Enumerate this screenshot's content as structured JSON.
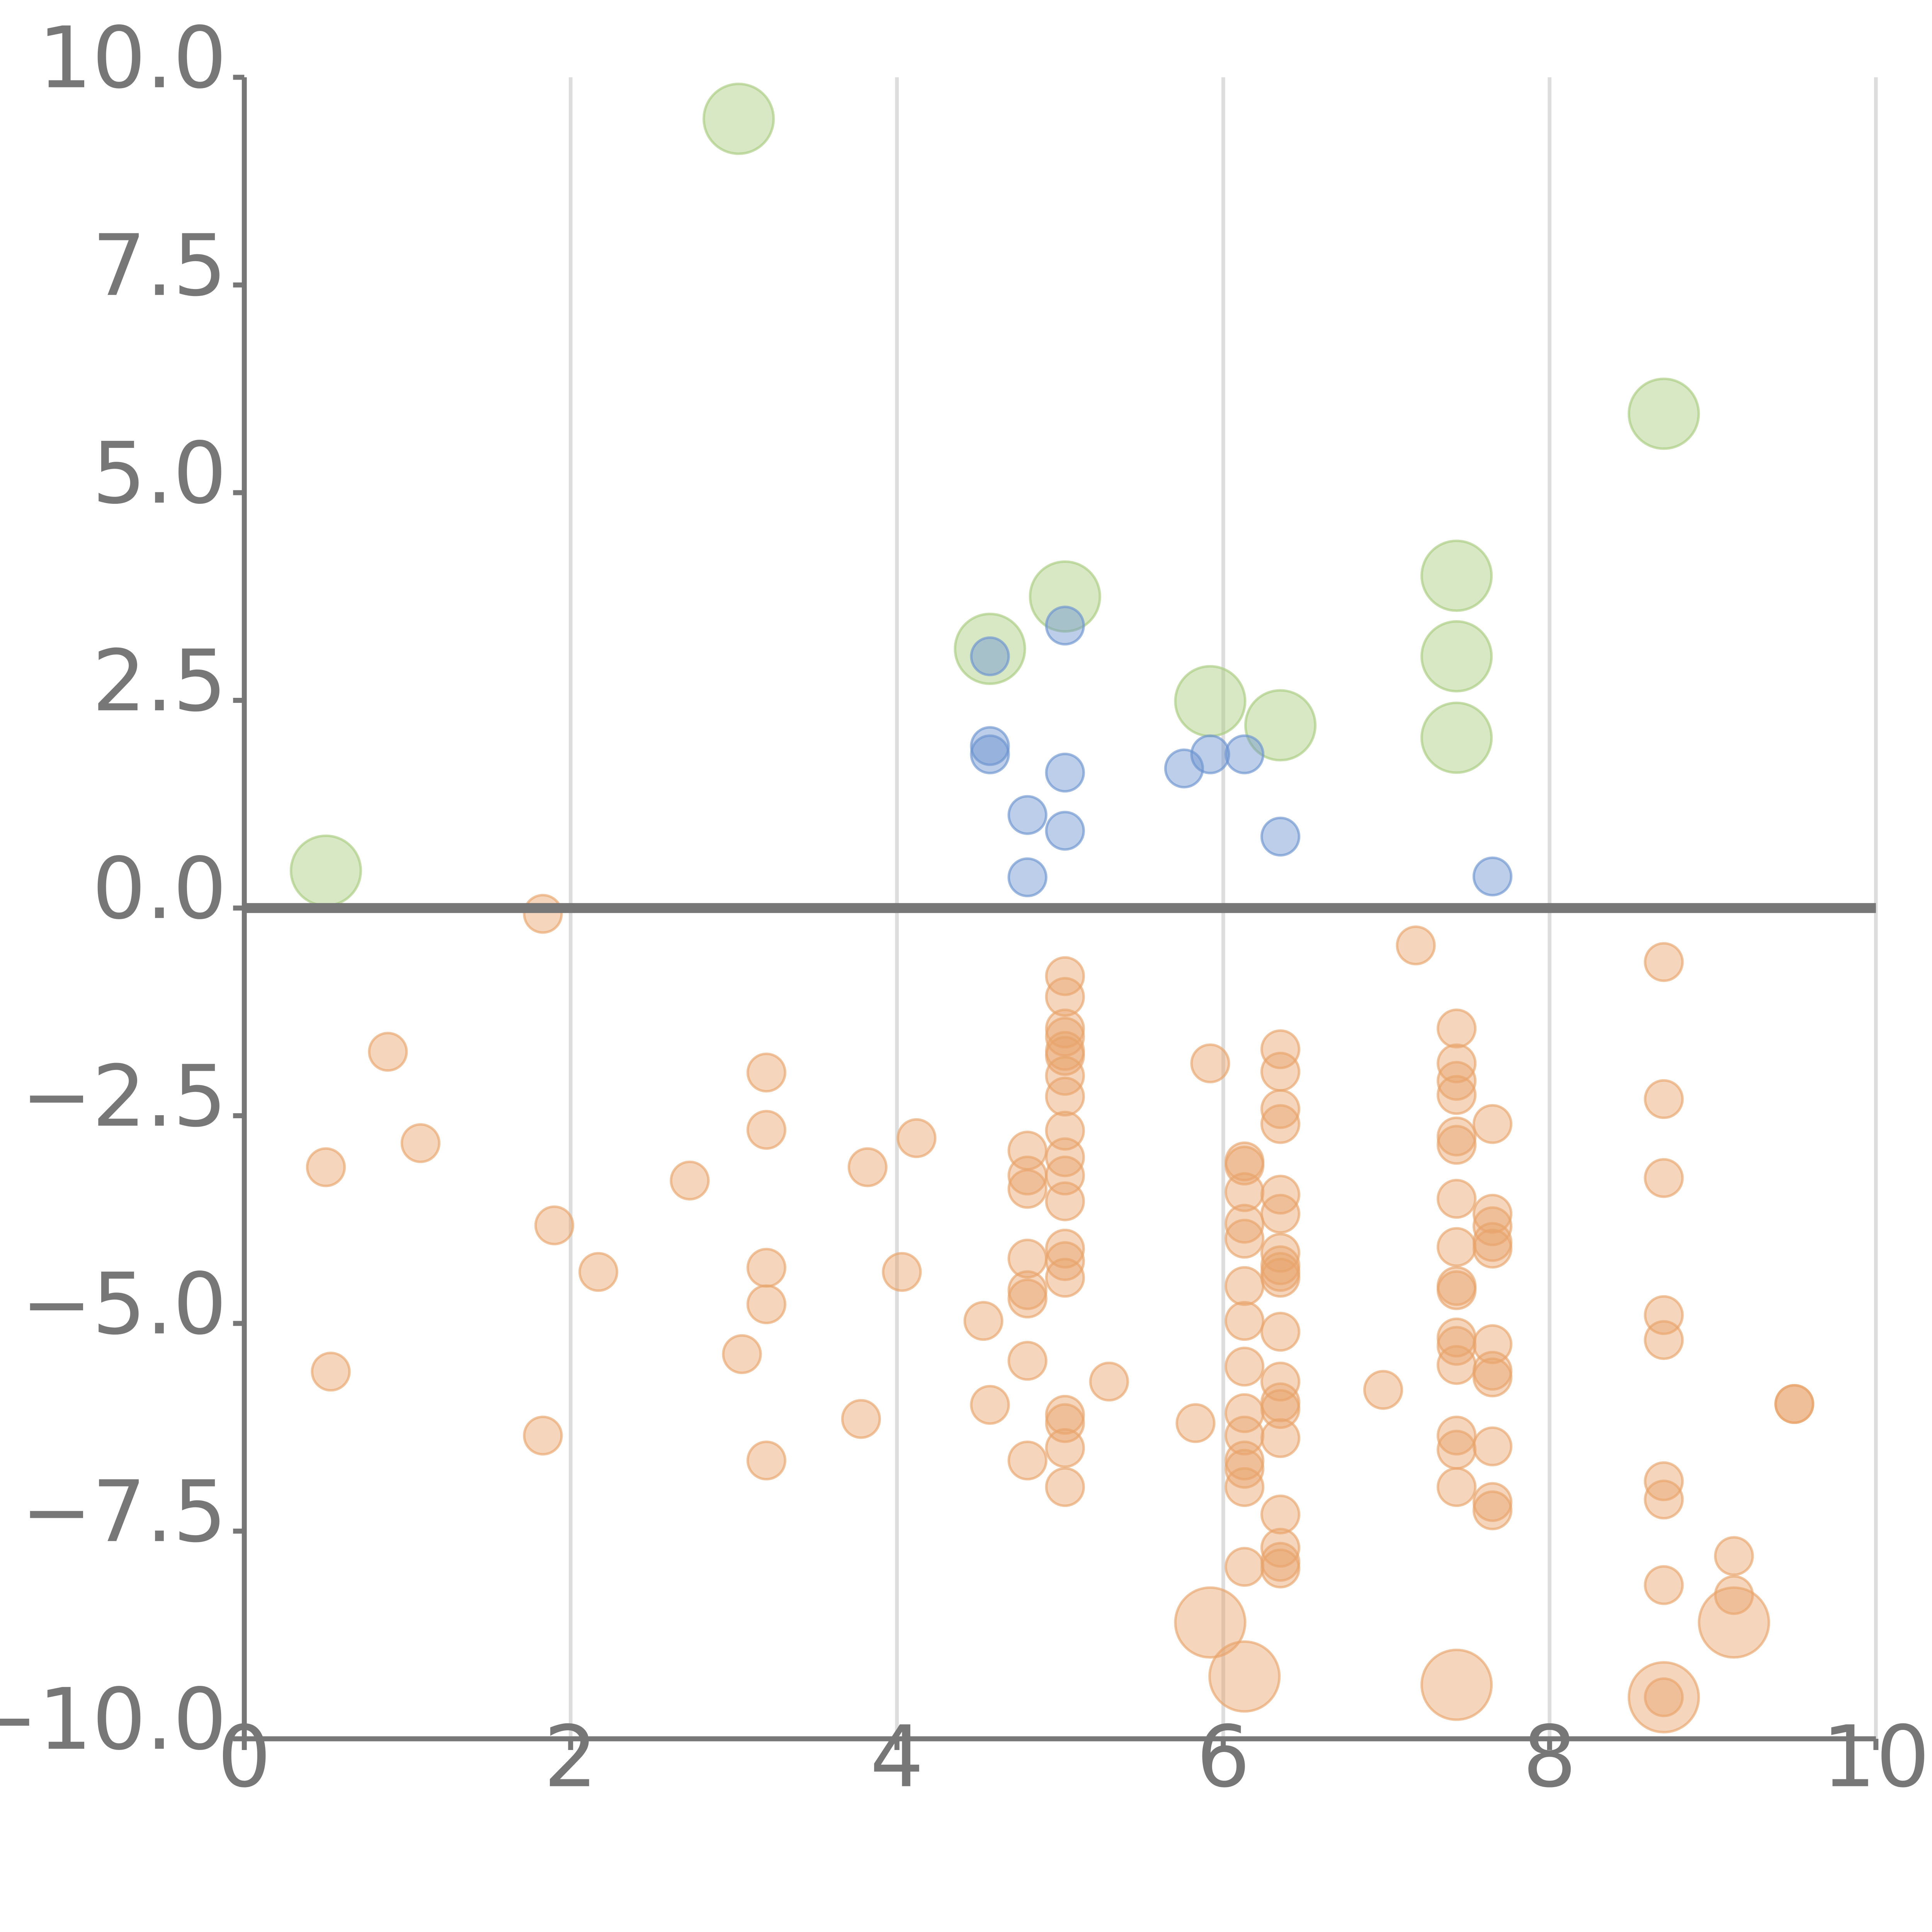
{
  "chart_data": {
    "type": "scatter",
    "title": "",
    "xlabel": "",
    "ylabel": "",
    "xlim": [
      0,
      10
    ],
    "ylim": [
      -10,
      10
    ],
    "x_ticks": [
      0,
      2,
      4,
      6,
      8,
      10
    ],
    "x_tick_labels": [
      "0",
      "2",
      "4",
      "6",
      "8",
      "10"
    ],
    "y_ticks": [
      10,
      7.5,
      5,
      2.5,
      0,
      -2.5,
      -5,
      -7.5,
      -10
    ],
    "y_tick_labels": [
      "10.0",
      "7.5",
      "5.0",
      "2.5",
      "0.0",
      "−2.5",
      "−5.0",
      "−7.5",
      "−10.0"
    ],
    "grid": "vertical",
    "reference_line_y": 0,
    "legend": "none",
    "series": [
      {
        "name": "green",
        "color": "#a9cc7f",
        "size": "large",
        "points": [
          [
            3.03,
            9.5
          ],
          [
            8.7,
            5.95
          ],
          [
            5.03,
            3.75
          ],
          [
            4.57,
            3.12
          ],
          [
            7.43,
            4.0
          ],
          [
            7.43,
            3.03
          ],
          [
            5.92,
            2.49
          ],
          [
            6.35,
            2.2
          ],
          [
            7.43,
            2.05
          ],
          [
            0.5,
            0.45
          ]
        ]
      },
      {
        "name": "blue",
        "color": "#6b93cf",
        "size": "medium",
        "points": [
          [
            5.03,
            3.4
          ],
          [
            4.57,
            3.03
          ],
          [
            4.57,
            1.95
          ],
          [
            4.57,
            1.85
          ],
          [
            5.92,
            1.85
          ],
          [
            6.13,
            1.85
          ],
          [
            5.76,
            1.68
          ],
          [
            5.03,
            1.63
          ],
          [
            4.8,
            1.12
          ],
          [
            5.03,
            0.93
          ],
          [
            6.35,
            0.86
          ],
          [
            4.8,
            0.37
          ],
          [
            7.65,
            0.38
          ]
        ]
      },
      {
        "name": "orange",
        "color": "#e8a46c",
        "size": "medium",
        "points": [
          [
            1.83,
            -0.07
          ],
          [
            7.18,
            -0.45
          ],
          [
            8.7,
            -0.65
          ],
          [
            5.03,
            -0.82
          ],
          [
            5.03,
            -1.07
          ],
          [
            5.03,
            -1.45
          ],
          [
            5.03,
            -1.55
          ],
          [
            5.03,
            -1.72
          ],
          [
            5.03,
            -1.78
          ],
          [
            5.03,
            -2.02
          ],
          [
            5.03,
            -2.27
          ],
          [
            5.03,
            -2.68
          ],
          [
            5.03,
            -3.0
          ],
          [
            5.03,
            -3.22
          ],
          [
            5.03,
            -3.53
          ],
          [
            5.03,
            -4.1
          ],
          [
            5.03,
            -4.25
          ],
          [
            5.03,
            -4.45
          ],
          [
            5.03,
            -6.1
          ],
          [
            5.03,
            -6.2
          ],
          [
            5.03,
            -6.5
          ],
          [
            5.03,
            -6.97
          ],
          [
            0.88,
            -1.73
          ],
          [
            1.08,
            -2.83
          ],
          [
            0.5,
            -3.12
          ],
          [
            0.53,
            -5.58
          ],
          [
            1.9,
            -3.82
          ],
          [
            1.83,
            -6.35
          ],
          [
            2.17,
            -4.38
          ],
          [
            2.73,
            -3.28
          ],
          [
            3.2,
            -1.98
          ],
          [
            3.2,
            -2.67
          ],
          [
            3.2,
            -4.33
          ],
          [
            3.2,
            -4.77
          ],
          [
            3.2,
            -6.65
          ],
          [
            3.05,
            -5.37
          ],
          [
            3.82,
            -3.12
          ],
          [
            4.12,
            -2.77
          ],
          [
            3.78,
            -6.15
          ],
          [
            4.03,
            -4.38
          ],
          [
            4.8,
            -2.92
          ],
          [
            4.8,
            -3.22
          ],
          [
            4.8,
            -3.38
          ],
          [
            4.8,
            -4.22
          ],
          [
            4.8,
            -4.6
          ],
          [
            4.8,
            -4.7
          ],
          [
            4.8,
            -5.45
          ],
          [
            4.8,
            -6.65
          ],
          [
            4.53,
            -4.97
          ],
          [
            4.57,
            -5.98
          ],
          [
            5.3,
            -5.7
          ],
          [
            5.92,
            -1.87
          ],
          [
            5.83,
            -6.2
          ],
          [
            6.13,
            -3.05
          ],
          [
            6.13,
            -3.1
          ],
          [
            6.13,
            -3.42
          ],
          [
            6.13,
            -3.8
          ],
          [
            6.13,
            -3.98
          ],
          [
            6.13,
            -4.55
          ],
          [
            6.13,
            -4.97
          ],
          [
            6.13,
            -5.52
          ],
          [
            6.13,
            -6.08
          ],
          [
            6.13,
            -6.35
          ],
          [
            6.13,
            -6.65
          ],
          [
            6.13,
            -6.75
          ],
          [
            6.13,
            -6.97
          ],
          [
            6.13,
            -7.93
          ],
          [
            6.35,
            -1.7
          ],
          [
            6.35,
            -1.97
          ],
          [
            6.35,
            -2.42
          ],
          [
            6.35,
            -2.6
          ],
          [
            6.35,
            -3.45
          ],
          [
            6.35,
            -3.68
          ],
          [
            6.35,
            -4.15
          ],
          [
            6.35,
            -4.3
          ],
          [
            6.35,
            -4.38
          ],
          [
            6.35,
            -4.45
          ],
          [
            6.35,
            -5.1
          ],
          [
            6.35,
            -5.7
          ],
          [
            6.35,
            -5.95
          ],
          [
            6.35,
            -6.03
          ],
          [
            6.35,
            -6.38
          ],
          [
            6.35,
            -7.3
          ],
          [
            6.35,
            -7.7
          ],
          [
            6.35,
            -7.87
          ],
          [
            6.35,
            -7.95
          ],
          [
            6.98,
            -5.8
          ],
          [
            7.43,
            -1.45
          ],
          [
            7.43,
            -1.87
          ],
          [
            7.43,
            -2.08
          ],
          [
            7.43,
            -2.25
          ],
          [
            7.43,
            -2.75
          ],
          [
            7.43,
            -2.85
          ],
          [
            7.43,
            -3.5
          ],
          [
            7.43,
            -4.08
          ],
          [
            7.43,
            -4.55
          ],
          [
            7.43,
            -4.6
          ],
          [
            7.43,
            -5.17
          ],
          [
            7.43,
            -5.27
          ],
          [
            7.43,
            -5.5
          ],
          [
            7.43,
            -6.35
          ],
          [
            7.43,
            -6.52
          ],
          [
            7.43,
            -6.97
          ],
          [
            7.65,
            -2.6
          ],
          [
            7.65,
            -3.68
          ],
          [
            7.65,
            -3.83
          ],
          [
            7.65,
            -4.02
          ],
          [
            7.65,
            -4.1
          ],
          [
            7.65,
            -5.25
          ],
          [
            7.65,
            -5.57
          ],
          [
            7.65,
            -5.65
          ],
          [
            7.65,
            -6.48
          ],
          [
            7.65,
            -7.15
          ],
          [
            7.65,
            -7.25
          ],
          [
            8.7,
            -2.3
          ],
          [
            8.7,
            -3.25
          ],
          [
            8.7,
            -4.9
          ],
          [
            8.7,
            -5.2
          ],
          [
            8.7,
            -6.9
          ],
          [
            8.7,
            -7.12
          ],
          [
            8.7,
            -8.15
          ],
          [
            9.13,
            -7.8
          ],
          [
            9.13,
            -8.27
          ],
          [
            8.7,
            -9.5
          ],
          [
            9.5,
            -5.97
          ],
          [
            9.5,
            -5.97
          ]
        ]
      },
      {
        "name": "orange-large",
        "color": "#e8a46c",
        "size": "large",
        "points": [
          [
            5.92,
            -8.6
          ],
          [
            6.13,
            -9.25
          ],
          [
            7.43,
            -9.35
          ],
          [
            8.7,
            -9.5
          ],
          [
            9.13,
            -8.6
          ]
        ]
      }
    ]
  }
}
